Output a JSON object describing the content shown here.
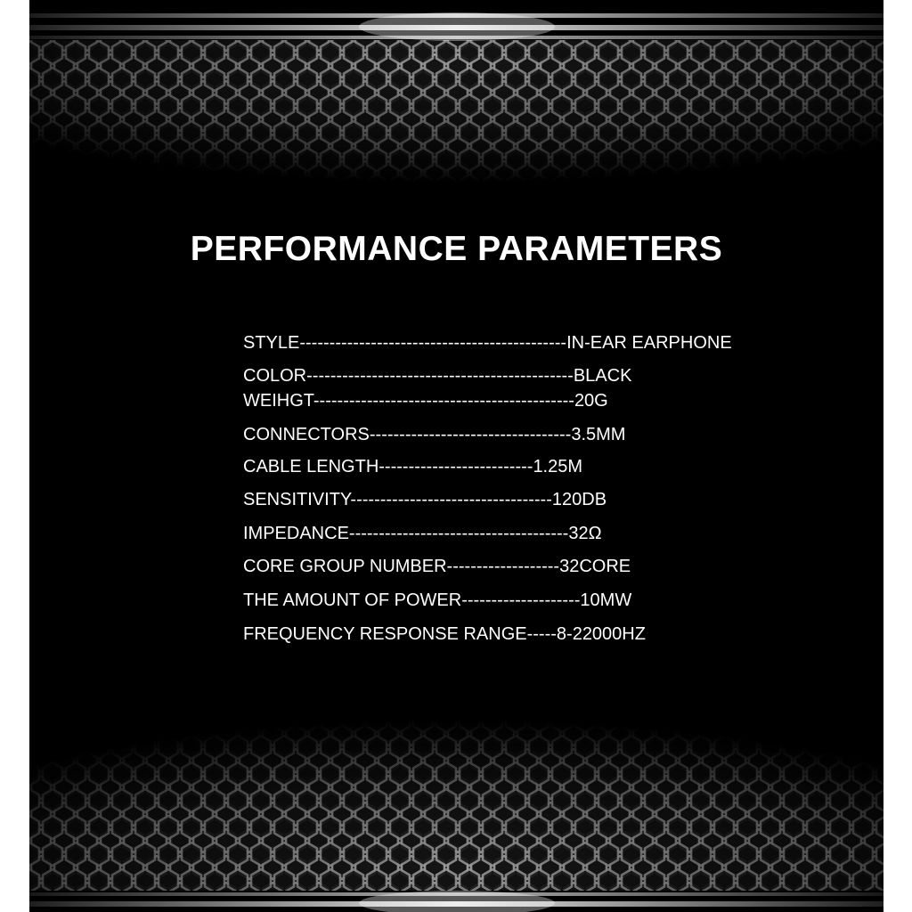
{
  "title": "PERFORMANCE PARAMETERS",
  "colors": {
    "background": "#000000",
    "text": "#ffffff",
    "border": "#ffffff"
  },
  "specs": [
    {
      "label": "STYLE",
      "leader": "---------------------------------------------",
      "value": "IN-EAR EARPHONE"
    },
    {
      "label": "COLOR",
      "leader": "---------------------------------------------",
      "value": "BLACK"
    },
    {
      "label": "WEIHGT",
      "leader": "--------------------------------------------",
      "value": "20G"
    },
    {
      "label": "CONNECTORS",
      "leader": "----------------------------------",
      "value": "3.5MM"
    },
    {
      "label": "CABLE LENGTH",
      "leader": "--------------------------",
      "value": "1.25M"
    },
    {
      "label": "SENSITIVITY",
      "leader": "----------------------------------",
      "value": "120DB"
    },
    {
      "label": "IMPEDANCE",
      "leader": "-------------------------------------",
      "value": "32Ω"
    },
    {
      "label": "CORE GROUP NUMBER",
      "leader": "-------------------",
      "value": "32CORE"
    },
    {
      "label": "THE AMOUNT OF POWER",
      "leader": "--------------------",
      "value": "10MW"
    },
    {
      "label": "FREQUENCY RESPONSE RANGE",
      "leader": "-----",
      "value": "8-22000HZ"
    }
  ]
}
